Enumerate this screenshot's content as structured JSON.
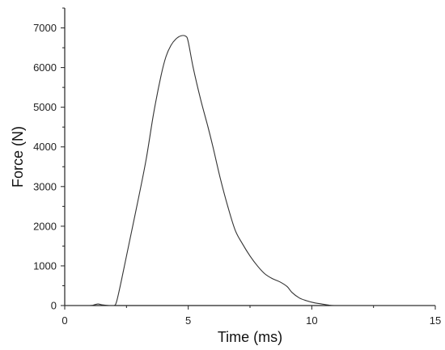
{
  "chart_data": {
    "type": "line",
    "xlabel": "Time (ms)",
    "ylabel": "Force (N)",
    "xlim": [
      0,
      15
    ],
    "ylim": [
      0,
      7500
    ],
    "x_ticks": [
      0,
      5,
      10,
      15
    ],
    "x_tick_labels": [
      "0",
      "5",
      "10",
      "15"
    ],
    "y_ticks": [
      0,
      1000,
      2000,
      3000,
      4000,
      5000,
      6000,
      7000
    ],
    "y_tick_labels": [
      "0",
      "1000",
      "2000",
      "3000",
      "4000",
      "5000",
      "6000",
      "7000"
    ],
    "grid": false,
    "legend": "none",
    "series": [
      {
        "x": [
          0,
          1.0,
          1.2,
          1.35,
          1.5,
          1.8,
          2.0,
          2.1,
          2.3,
          2.6,
          3.0,
          3.3,
          3.6,
          3.9,
          4.1,
          4.3,
          4.5,
          4.7,
          4.9,
          5.0,
          5.2,
          5.5,
          5.8,
          6.0,
          6.3,
          6.6,
          6.9,
          7.2,
          7.5,
          7.8,
          8.1,
          8.4,
          8.7,
          9.0,
          9.2,
          9.5,
          9.8,
          10.1,
          10.4,
          10.7,
          10.9,
          11.5,
          15
        ],
        "y": [
          0,
          0,
          20,
          40,
          20,
          0,
          0,
          100,
          650,
          1550,
          2750,
          3700,
          4850,
          5800,
          6280,
          6560,
          6720,
          6800,
          6790,
          6650,
          6000,
          5200,
          4500,
          4000,
          3200,
          2500,
          1900,
          1550,
          1250,
          1000,
          800,
          680,
          600,
          480,
          330,
          190,
          120,
          70,
          40,
          10,
          0,
          0,
          0
        ]
      }
    ]
  }
}
